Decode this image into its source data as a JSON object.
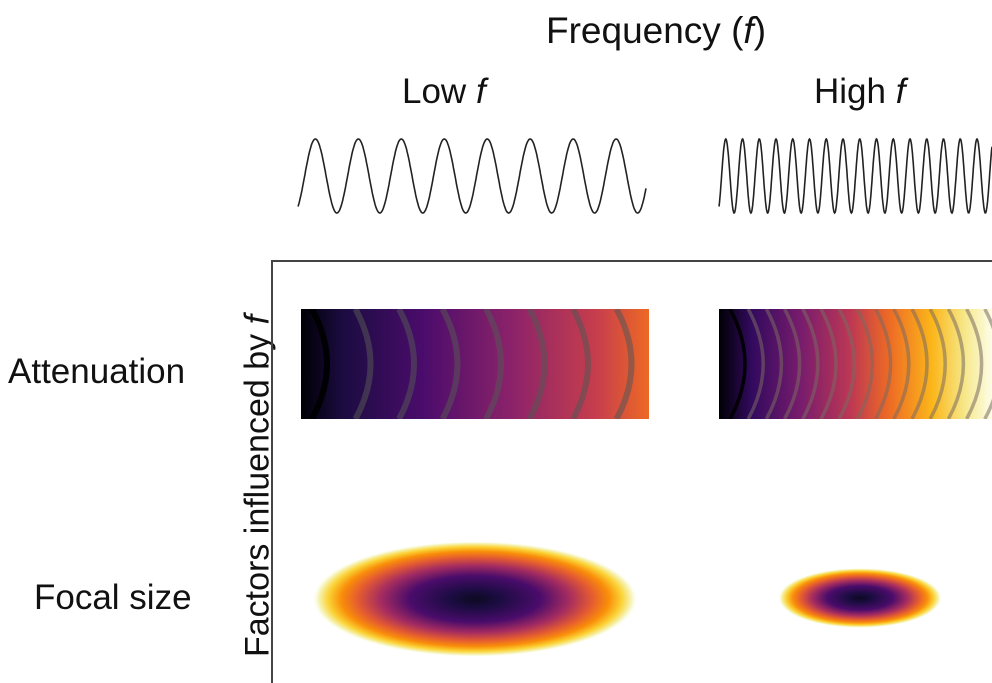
{
  "header": {
    "title_prefix": "Frequency (",
    "title_var": "f",
    "title_suffix": ")"
  },
  "columns": [
    {
      "label_text": "Low ",
      "label_var": "f"
    },
    {
      "label_text": "High ",
      "label_var": "f"
    }
  ],
  "y_axis": {
    "label_text": "Factors influenced by ",
    "label_var": "f"
  },
  "rows": [
    {
      "label": "Attenuation"
    },
    {
      "label": "Focal size"
    }
  ]
}
